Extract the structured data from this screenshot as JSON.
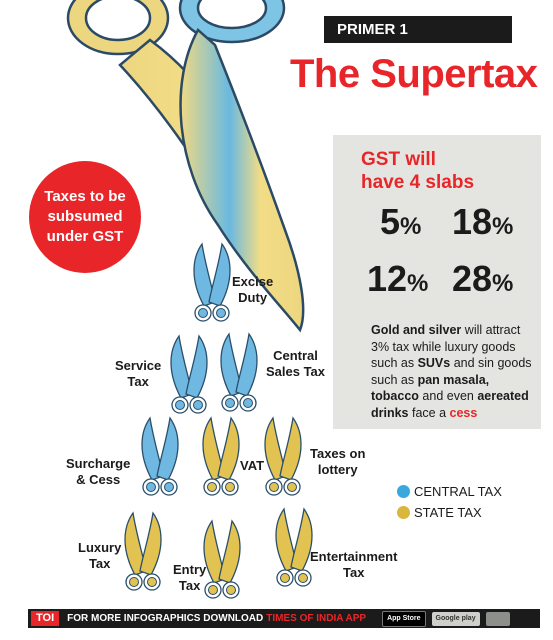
{
  "header": {
    "primer": "PRIMER 1",
    "title": "The Supertax"
  },
  "badge": {
    "lines": [
      "Taxes to be",
      "subsumed",
      "under GST"
    ]
  },
  "slabs": {
    "title_lines": [
      "GST will",
      "have 4 slabs"
    ],
    "rates": [
      "5",
      "18",
      "12",
      "28"
    ],
    "unit": "%"
  },
  "note": {
    "p1": "Gold and silver",
    "p2": " will attract 3% tax while luxury goods such as ",
    "p3": "SUVs",
    "p4": " and sin goods such as ",
    "p5": "pan masala, tobacco",
    "p6": " and even ",
    "p7": "aereated drinks",
    "p8": " face a ",
    "p9": "cess"
  },
  "taxes": {
    "excise": [
      "Excise",
      "Duty"
    ],
    "service": [
      "Service",
      "Tax"
    ],
    "central_sales": [
      "Central",
      "Sales Tax"
    ],
    "surcharge": [
      "Surcharge",
      "& Cess"
    ],
    "vat": "VAT",
    "lottery": [
      "Taxes on",
      "lottery"
    ],
    "luxury": [
      "Luxury",
      "Tax"
    ],
    "entry": [
      "Entry",
      "Tax"
    ],
    "entertainment": [
      "Entertainment",
      "Tax"
    ]
  },
  "legend": {
    "central": {
      "label": "CENTRAL TAX",
      "color": "#3ba7df"
    },
    "state": {
      "label": "STATE TAX",
      "color": "#d9b63c"
    }
  },
  "footer": {
    "logo": "TOI",
    "text": "FOR MORE  INFOGRAPHICS DOWNLOAD",
    "brand": "TIMES OF INDIA APP",
    "store1": "App Store",
    "store2": "Google play"
  },
  "colors": {
    "red": "#e8262a",
    "blue": "#3ba7df",
    "gold": "#d9b63c",
    "panel": "#e4e5e0",
    "dark": "#1b1b1b"
  }
}
